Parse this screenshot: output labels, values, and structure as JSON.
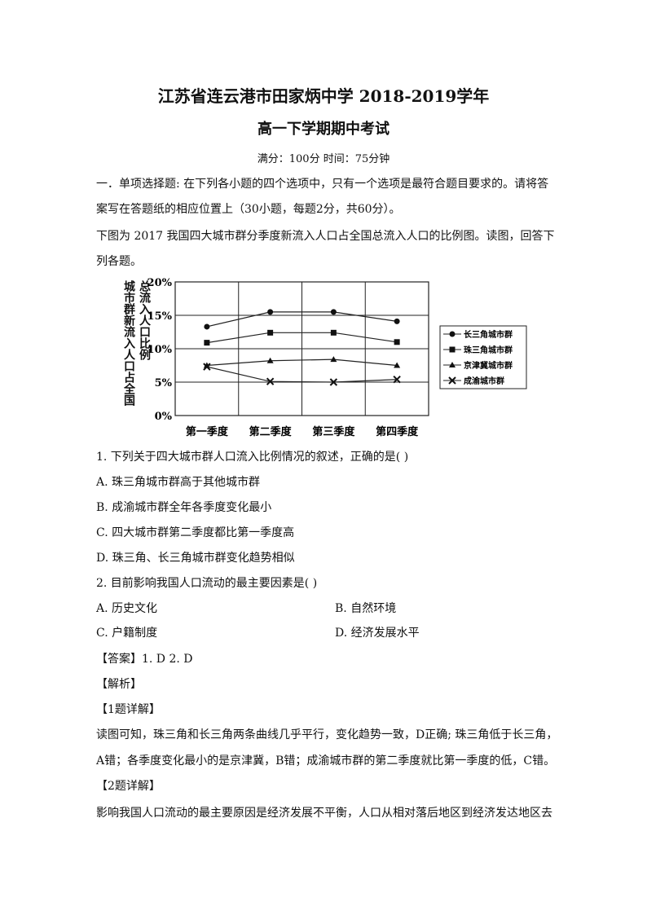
{
  "header": {
    "title": "江苏省连云港市田家炳中学 2018-2019学年",
    "subtitle": "高一下学期期中考试",
    "meta": "满分：100分   时间：75分钟"
  },
  "intro": {
    "line1": "一．单项选择题: 在下列各小题的四个选项中，只有一个选项是最符合题目要求的。请将答",
    "line2": "案写在答题纸的相应位置上（30小题，每题2分，共60分）。",
    "line3": "下图为 2017 我国四大城市群分季度新流入人口占全国总流入人口的比例图。读图，回答下",
    "line4": "列各题。"
  },
  "chart_data": {
    "type": "line",
    "ylabel": "城市群新流入人口占全国总流入人口比例",
    "categories": [
      "第一季度",
      "第二季度",
      "第三季度",
      "第四季度"
    ],
    "yticks": [
      "0%",
      "5%",
      "10%",
      "15%",
      "20%"
    ],
    "ylim": [
      0,
      20
    ],
    "grid": true,
    "legend_position": "right",
    "series": [
      {
        "name": "长三角城市群",
        "marker": "circle",
        "values": [
          13.3,
          15.5,
          15.5,
          14.1
        ]
      },
      {
        "name": "珠三角城市群",
        "marker": "square",
        "values": [
          10.9,
          12.4,
          12.4,
          11.0
        ]
      },
      {
        "name": "京津冀城市群",
        "marker": "triangle",
        "values": [
          7.5,
          8.2,
          8.4,
          7.5
        ]
      },
      {
        "name": "成渝城市群",
        "marker": "x",
        "values": [
          7.3,
          5.1,
          5.0,
          5.4
        ]
      }
    ]
  },
  "questions": [
    {
      "stem": "1. 下列关于四大城市群人口流入比例情况的叙述，正确的是(      )",
      "options": [
        "A. 珠三角城市群高于其他城市群",
        "B. 成渝城市群全年各季度变化最小",
        "C. 四大城市群第二季度都比第一季度高",
        "D. 珠三角、长三角城市群变化趋势相似"
      ]
    },
    {
      "stem": "2. 目前影响我国人口流动的最主要因素是(      )",
      "options": [
        "A. 历史文化",
        "B. 自然环境",
        "C. 户籍制度",
        "D. 经济发展水平"
      ]
    }
  ],
  "answer": {
    "answer_line": "【答案】1. D     2. D",
    "analysis_heading": "【解析】",
    "q1_heading": "【1题详解】",
    "q1_line1": "读图可知，珠三角和长三角两条曲线几乎平行，变化趋势一致，D正确; 珠三角低于长三角，",
    "q1_line2": "A错；各季度变化最小的是京津冀，B错；成渝城市群的第二季度就比第一季度的低，C错。",
    "q2_heading": "【2题详解】",
    "q2_line1": "影响我国人口流动的最主要原因是经济发展不平衡，人口从相对落后地区到经济发达地区去"
  }
}
